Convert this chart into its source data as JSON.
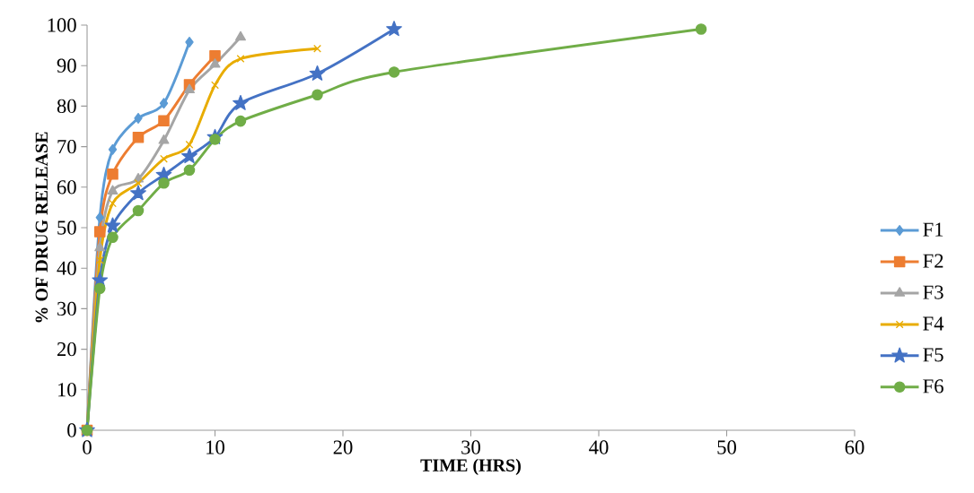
{
  "chart_data": {
    "type": "line",
    "xlabel": "TIME (HRS)",
    "ylabel": "% OF DRUG RELEASE",
    "xlim": [
      0,
      60
    ],
    "ylim": [
      0,
      100
    ],
    "xticks": [
      0,
      10,
      20,
      30,
      40,
      50,
      60
    ],
    "yticks": [
      0,
      10,
      20,
      30,
      40,
      50,
      60,
      70,
      80,
      90,
      100
    ],
    "legend": "right",
    "series": [
      {
        "name": "F1",
        "color": "#5b9bd5",
        "marker": "diamond",
        "x": [
          0,
          1,
          2,
          4,
          6,
          8
        ],
        "values": [
          0,
          52.5,
          69.3,
          77,
          80.7,
          95.8
        ]
      },
      {
        "name": "F2",
        "color": "#ed7d31",
        "marker": "square",
        "x": [
          0,
          1,
          2,
          4,
          6,
          8,
          10
        ],
        "values": [
          0,
          49,
          63.2,
          72.3,
          76.4,
          85.3,
          92.4
        ]
      },
      {
        "name": "F3",
        "color": "#a5a5a5",
        "marker": "triangle",
        "x": [
          0,
          1,
          2,
          4,
          6,
          8,
          10,
          12
        ],
        "values": [
          0,
          45,
          59,
          62,
          71.5,
          84,
          90.3,
          97
        ]
      },
      {
        "name": "F4",
        "color": "#e8ac00",
        "marker": "cross",
        "x": [
          0,
          1,
          2,
          4,
          6,
          8,
          10,
          12,
          18
        ],
        "values": [
          0,
          42,
          56,
          61,
          67,
          70.5,
          85.2,
          91.7,
          94.2
        ]
      },
      {
        "name": "F5",
        "color": "#4472c4",
        "marker": "star",
        "x": [
          0,
          1,
          2,
          4,
          6,
          8,
          10,
          12,
          18,
          24
        ],
        "values": [
          0,
          37,
          50.5,
          58.5,
          63,
          67.6,
          72.3,
          80.7,
          88,
          99
        ]
      },
      {
        "name": "F6",
        "color": "#70ad47",
        "marker": "circle",
        "x": [
          0,
          1,
          2,
          4,
          6,
          8,
          10,
          12,
          18,
          24,
          48
        ],
        "values": [
          0,
          35,
          47.6,
          54.2,
          61,
          64.2,
          71.8,
          76.3,
          82.8,
          88.4,
          99
        ]
      }
    ]
  }
}
